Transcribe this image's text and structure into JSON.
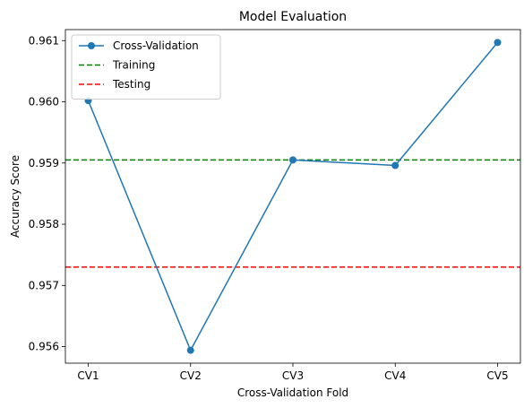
{
  "chart_data": {
    "type": "line",
    "title": "Model Evaluation",
    "xlabel": "Cross-Validation Fold",
    "ylabel": "Accuracy Score",
    "categories": [
      "CV1",
      "CV2",
      "CV3",
      "CV4",
      "CV5"
    ],
    "series": [
      {
        "name": "Cross-Validation",
        "values": [
          0.96002,
          0.95594,
          0.95905,
          0.95896,
          0.96097
        ],
        "color": "#1f77b4",
        "style": "solid",
        "marker": "circle"
      }
    ],
    "reference_lines": [
      {
        "name": "Training",
        "value": 0.95905,
        "color": "#008000",
        "style": "dashed"
      },
      {
        "name": "Testing",
        "value": 0.9573,
        "color": "#ff0000",
        "style": "dashed"
      }
    ],
    "ylim": [
      0.95573,
      0.96118
    ],
    "yticks": [
      0.956,
      0.957,
      0.958,
      0.959,
      0.96,
      0.961
    ],
    "ytick_labels": [
      "0.956",
      "0.957",
      "0.958",
      "0.959",
      "0.960",
      "0.961"
    ],
    "grid": false,
    "legend_position": "top-left"
  }
}
